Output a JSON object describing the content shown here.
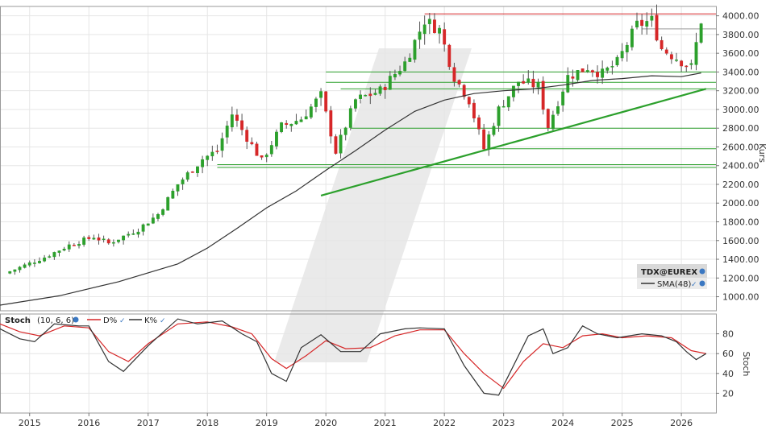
{
  "chart_data": [
    {
      "type": "candlestick",
      "panel": "price",
      "ylabel": "Kurs",
      "ylim": [
        850,
        4100
      ],
      "yticks": [
        1000,
        1200,
        1400,
        1600,
        1800,
        2000,
        2200,
        2400,
        2600,
        2800,
        3000,
        3200,
        3400,
        3600,
        3800,
        4000
      ],
      "ytick_labels": [
        "1000.00",
        "1200.00",
        "1400.00",
        "1600.00",
        "1800.00",
        "2000.00",
        "2200.00",
        "2400.00",
        "2600.00",
        "2800.00",
        "3000.00",
        "3200.00",
        "3400.00",
        "3600.00",
        "3800.00",
        "4000.00"
      ],
      "grid": true,
      "legend": {
        "position": "bottom-right",
        "instrument": "TDX@EUREX",
        "series_label": "SMA(48)"
      },
      "series": [
        {
          "name": "TDX@EUREX",
          "kind": "candlestick",
          "frequency": "monthly",
          "up_color": "#2ca02c",
          "down_color": "#d62728",
          "close_anchors": [
            [
              "2014-09",
              1270
            ],
            [
              "2015-04",
              1420
            ],
            [
              "2015-09",
              1550
            ],
            [
              "2016-02",
              1640
            ],
            [
              "2016-05",
              1570
            ],
            [
              "2016-11",
              1720
            ],
            [
              "2017-03",
              1880
            ],
            [
              "2017-07",
              2200
            ],
            [
              "2017-12",
              2470
            ],
            [
              "2018-03",
              2560
            ],
            [
              "2018-06",
              2950
            ],
            [
              "2018-09",
              2700
            ],
            [
              "2018-12",
              2450
            ],
            [
              "2019-04",
              2820
            ],
            [
              "2019-08",
              2900
            ],
            [
              "2019-12",
              3150
            ],
            [
              "2020-03",
              2550
            ],
            [
              "2020-07",
              3100
            ],
            [
              "2020-12",
              3200
            ],
            [
              "2021-05",
              3500
            ],
            [
              "2021-09",
              3950
            ],
            [
              "2021-12",
              3850
            ],
            [
              "2022-03",
              3350
            ],
            [
              "2022-06",
              3100
            ],
            [
              "2022-09",
              2580
            ],
            [
              "2022-12",
              3000
            ],
            [
              "2023-04",
              3300
            ],
            [
              "2023-08",
              3250
            ],
            [
              "2023-10",
              2820
            ],
            [
              "2024-02",
              3350
            ],
            [
              "2024-06",
              3450
            ],
            [
              "2024-09",
              3380
            ],
            [
              "2024-12",
              3500
            ],
            [
              "2025-04",
              3900
            ],
            [
              "2025-07",
              3950
            ],
            [
              "2025-09",
              3650
            ],
            [
              "2025-12",
              3550
            ],
            [
              "2026-03",
              3450
            ],
            [
              "2026-05",
              3950
            ]
          ]
        },
        {
          "name": "SMA(48)",
          "kind": "line",
          "color": "#333333",
          "points": [
            [
              "2014-07",
              910
            ],
            [
              "2015-07",
              1010
            ],
            [
              "2016-07",
              1160
            ],
            [
              "2017-07",
              1350
            ],
            [
              "2018-01",
              1520
            ],
            [
              "2018-07",
              1730
            ],
            [
              "2019-01",
              1950
            ],
            [
              "2019-07",
              2130
            ],
            [
              "2020-01",
              2350
            ],
            [
              "2020-07",
              2560
            ],
            [
              "2021-01",
              2780
            ],
            [
              "2021-07",
              2980
            ],
            [
              "2022-01",
              3100
            ],
            [
              "2022-07",
              3170
            ],
            [
              "2023-01",
              3200
            ],
            [
              "2023-07",
              3220
            ],
            [
              "2024-01",
              3260
            ],
            [
              "2024-07",
              3310
            ],
            [
              "2025-01",
              3330
            ],
            [
              "2025-07",
              3360
            ],
            [
              "2026-01",
              3350
            ],
            [
              "2026-05",
              3390
            ]
          ]
        }
      ],
      "horizontal_lines": [
        {
          "y": 4020,
          "color": "#d62728",
          "from": "2021-09"
        },
        {
          "y": 3860,
          "color": "#999999",
          "from": "2025-05"
        },
        {
          "y": 3400,
          "color": "#2ca02c",
          "from": "2020-01"
        },
        {
          "y": 3290,
          "color": "#2ca02c",
          "from": "2020-01"
        },
        {
          "y": 3220,
          "color": "#2ca02c",
          "from": "2020-04"
        },
        {
          "y": 2800,
          "color": "#2ca02c",
          "from": "2020-06"
        },
        {
          "y": 2580,
          "color": "#2ca02c",
          "from": "2022-10"
        },
        {
          "y": 2410,
          "color": "#2ca02c",
          "from": "2018-03"
        },
        {
          "y": 2380,
          "color": "#2ca02c",
          "from": "2018-03"
        }
      ],
      "trendlines": [
        {
          "from": [
            "2019-12",
            2080
          ],
          "to": [
            "2026-06",
            3220
          ],
          "color": "#2ca02c"
        }
      ]
    },
    {
      "type": "line",
      "panel": "oscillator",
      "title": "Stoch",
      "params": "(10, 6, 6)",
      "ylabel": "Stoch",
      "ylim": [
        0,
        100
      ],
      "yticks": [
        20,
        40,
        60,
        80
      ],
      "ytick_labels": [
        "20",
        "40",
        "60",
        "80"
      ],
      "grid": true,
      "series": [
        {
          "name": "D%",
          "color": "#d62728",
          "points": [
            [
              "2014-07",
              90
            ],
            [
              "2014-11",
              82
            ],
            [
              "2015-03",
              78
            ],
            [
              "2015-08",
              88
            ],
            [
              "2016-01",
              86
            ],
            [
              "2016-05",
              62
            ],
            [
              "2016-09",
              52
            ],
            [
              "2017-01",
              70
            ],
            [
              "2017-07",
              90
            ],
            [
              "2018-01",
              92
            ],
            [
              "2018-06",
              87
            ],
            [
              "2018-10",
              80
            ],
            [
              "2019-02",
              55
            ],
            [
              "2019-05",
              45
            ],
            [
              "2019-09",
              58
            ],
            [
              "2020-01",
              73
            ],
            [
              "2020-05",
              65
            ],
            [
              "2020-10",
              66
            ],
            [
              "2021-03",
              78
            ],
            [
              "2021-08",
              84
            ],
            [
              "2022-01",
              84
            ],
            [
              "2022-05",
              60
            ],
            [
              "2022-09",
              40
            ],
            [
              "2023-01",
              25
            ],
            [
              "2023-05",
              52
            ],
            [
              "2023-09",
              70
            ],
            [
              "2024-01",
              66
            ],
            [
              "2024-05",
              78
            ],
            [
              "2024-09",
              80
            ],
            [
              "2025-01",
              76
            ],
            [
              "2025-06",
              78
            ],
            [
              "2025-11",
              76
            ],
            [
              "2026-03",
              63
            ],
            [
              "2026-06",
              60
            ]
          ]
        },
        {
          "name": "K%",
          "color": "#333333",
          "points": [
            [
              "2014-07",
              85
            ],
            [
              "2014-11",
              75
            ],
            [
              "2015-02",
              72
            ],
            [
              "2015-06",
              90
            ],
            [
              "2015-11",
              88
            ],
            [
              "2016-01",
              88
            ],
            [
              "2016-05",
              52
            ],
            [
              "2016-08",
              42
            ],
            [
              "2017-01",
              68
            ],
            [
              "2017-07",
              95
            ],
            [
              "2017-11",
              90
            ],
            [
              "2018-04",
              93
            ],
            [
              "2018-08",
              80
            ],
            [
              "2018-11",
              72
            ],
            [
              "2019-02",
              40
            ],
            [
              "2019-05",
              32
            ],
            [
              "2019-08",
              66
            ],
            [
              "2019-12",
              79
            ],
            [
              "2020-04",
              62
            ],
            [
              "2020-08",
              62
            ],
            [
              "2020-12",
              80
            ],
            [
              "2021-05",
              85
            ],
            [
              "2021-08",
              86
            ],
            [
              "2022-01",
              85
            ],
            [
              "2022-05",
              48
            ],
            [
              "2022-09",
              20
            ],
            [
              "2022-12",
              18
            ],
            [
              "2023-02",
              38
            ],
            [
              "2023-06",
              78
            ],
            [
              "2023-09",
              85
            ],
            [
              "2023-11",
              60
            ],
            [
              "2024-02",
              66
            ],
            [
              "2024-05",
              88
            ],
            [
              "2024-08",
              80
            ],
            [
              "2024-12",
              76
            ],
            [
              "2025-05",
              80
            ],
            [
              "2025-09",
              78
            ],
            [
              "2025-12",
              72
            ],
            [
              "2026-02",
              62
            ],
            [
              "2026-04",
              54
            ],
            [
              "2026-06",
              60
            ]
          ]
        }
      ]
    }
  ],
  "x_axis": {
    "type": "date",
    "range": [
      "2014-07",
      "2026-08"
    ],
    "tick_labels": [
      "2015",
      "2016",
      "2017",
      "2018",
      "2019",
      "2020",
      "2021",
      "2022",
      "2023",
      "2024",
      "2025",
      "2026"
    ]
  },
  "colors": {
    "up": "#2ca02c",
    "down": "#d62728",
    "sma": "#333333",
    "grid": "#e6e6e6",
    "level_green": "#2ca02c",
    "level_red": "#d62728",
    "watermark": "#e3e3e3"
  },
  "icons": [
    "settings-icon",
    "checkmark-icon"
  ]
}
